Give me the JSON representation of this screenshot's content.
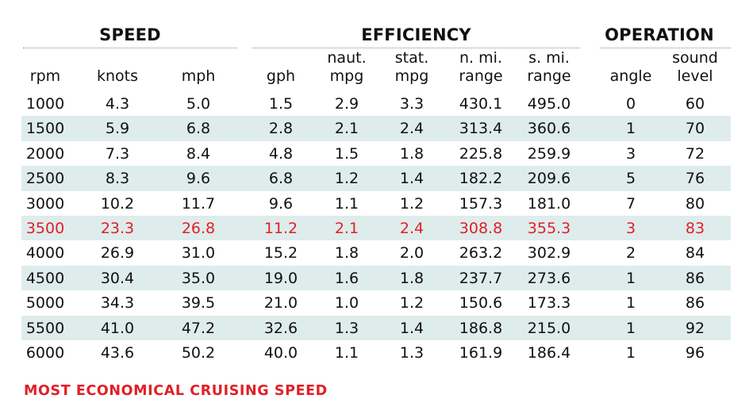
{
  "groups": {
    "speed": "SPEED",
    "efficiency": "EFFICIENCY",
    "operation": "OPERATION"
  },
  "columns": [
    {
      "key": "rpm",
      "line1": "",
      "line2": "rpm"
    },
    {
      "key": "knots",
      "line1": "",
      "line2": "knots"
    },
    {
      "key": "mph",
      "line1": "",
      "line2": "mph"
    },
    {
      "key": "gph",
      "line1": "",
      "line2": "gph"
    },
    {
      "key": "naut_mpg",
      "line1": "naut.",
      "line2": "mpg"
    },
    {
      "key": "stat_mpg",
      "line1": "stat.",
      "line2": "mpg"
    },
    {
      "key": "nmi_range",
      "line1": "n. mi.",
      "line2": "range"
    },
    {
      "key": "smi_range",
      "line1": "s. mi.",
      "line2": "range"
    },
    {
      "key": "angle",
      "line1": "",
      "line2": "angle"
    },
    {
      "key": "sound_level",
      "line1": "sound",
      "line2": "level"
    }
  ],
  "rows": [
    {
      "values": [
        "1000",
        "4.3",
        "5.0",
        "1.5",
        "2.9",
        "3.3",
        "430.1",
        "495.0",
        "0",
        "60"
      ],
      "highlight": false
    },
    {
      "values": [
        "1500",
        "5.9",
        "6.8",
        "2.8",
        "2.1",
        "2.4",
        "313.4",
        "360.6",
        "1",
        "70"
      ],
      "highlight": false
    },
    {
      "values": [
        "2000",
        "7.3",
        "8.4",
        "4.8",
        "1.5",
        "1.8",
        "225.8",
        "259.9",
        "3",
        "72"
      ],
      "highlight": false
    },
    {
      "values": [
        "2500",
        "8.3",
        "9.6",
        "6.8",
        "1.2",
        "1.4",
        "182.2",
        "209.6",
        "5",
        "76"
      ],
      "highlight": false
    },
    {
      "values": [
        "3000",
        "10.2",
        "11.7",
        "9.6",
        "1.1",
        "1.2",
        "157.3",
        "181.0",
        "7",
        "80"
      ],
      "highlight": false
    },
    {
      "values": [
        "3500",
        "23.3",
        "26.8",
        "11.2",
        "2.1",
        "2.4",
        "308.8",
        "355.3",
        "3",
        "83"
      ],
      "highlight": true
    },
    {
      "values": [
        "4000",
        "26.9",
        "31.0",
        "15.2",
        "1.8",
        "2.0",
        "263.2",
        "302.9",
        "2",
        "84"
      ],
      "highlight": false
    },
    {
      "values": [
        "4500",
        "30.4",
        "35.0",
        "19.0",
        "1.6",
        "1.8",
        "237.7",
        "273.6",
        "1",
        "86"
      ],
      "highlight": false
    },
    {
      "values": [
        "5000",
        "34.3",
        "39.5",
        "21.0",
        "1.0",
        "1.2",
        "150.6",
        "173.3",
        "1",
        "86"
      ],
      "highlight": false
    },
    {
      "values": [
        "5500",
        "41.0",
        "47.2",
        "32.6",
        "1.3",
        "1.4",
        "186.8",
        "215.0",
        "1",
        "92"
      ],
      "highlight": false
    },
    {
      "values": [
        "6000",
        "43.6",
        "50.2",
        "40.0",
        "1.1",
        "1.3",
        "161.9",
        "186.4",
        "1",
        "96"
      ],
      "highlight": false
    }
  ],
  "footer": "MOST ECONOMICAL CRUISING SPEED",
  "colors": {
    "highlight": "#e02026",
    "row_shade": "#dfecec"
  }
}
